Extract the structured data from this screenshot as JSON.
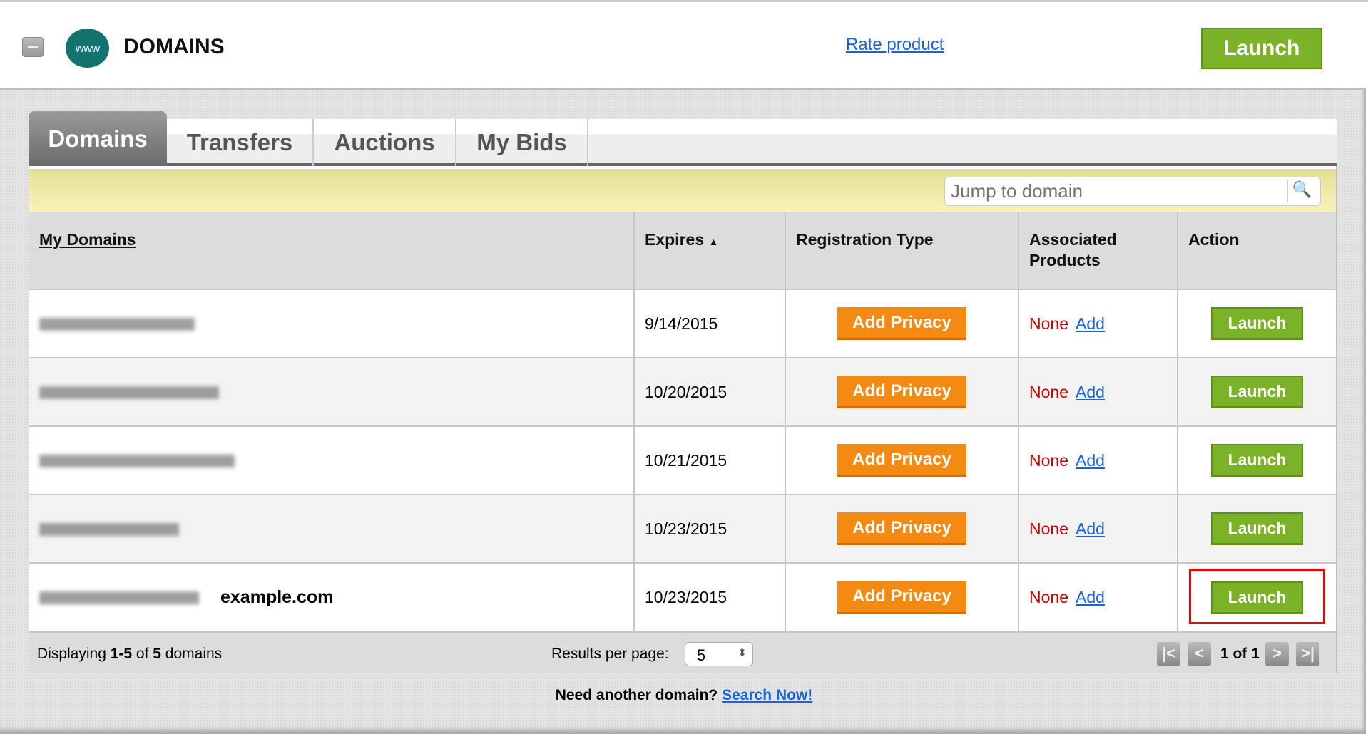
{
  "header": {
    "title": "DOMAINS",
    "logo_text": "www",
    "rate_link": "Rate product",
    "launch_label": "Launch"
  },
  "tabs": [
    {
      "label": "Domains",
      "active": true
    },
    {
      "label": "Transfers"
    },
    {
      "label": "Auctions"
    },
    {
      "label": "My Bids"
    }
  ],
  "search": {
    "placeholder": "Jump to domain",
    "icon": "magnifier-icon"
  },
  "table": {
    "columns": [
      "My Domains",
      "Expires",
      "Registration Type",
      "Associated Products",
      "Action"
    ],
    "sort_indicator": "▲",
    "rows": [
      {
        "domain_visible": "",
        "expires": "9/14/2015",
        "reg_button": "Add Privacy",
        "products": "None",
        "add": "Add",
        "action": "Launch"
      },
      {
        "domain_visible": "",
        "expires": "10/20/2015",
        "reg_button": "Add Privacy",
        "products": "None",
        "add": "Add",
        "action": "Launch"
      },
      {
        "domain_visible": "",
        "expires": "10/21/2015",
        "reg_button": "Add Privacy",
        "products": "None",
        "add": "Add",
        "action": "Launch"
      },
      {
        "domain_visible": "",
        "expires": "10/23/2015",
        "reg_button": "Add Privacy",
        "products": "None",
        "add": "Add",
        "action": "Launch"
      },
      {
        "domain_visible": "example.com",
        "expires": "10/23/2015",
        "reg_button": "Add Privacy",
        "products": "None",
        "add": "Add",
        "action": "Launch",
        "highlighted": true
      }
    ]
  },
  "footer": {
    "displaying_prefix": "Displaying ",
    "range": "1-5",
    "of": " of ",
    "total": "5",
    "suffix": " domains",
    "results_label": "Results per page:",
    "results_value": "5",
    "page_text": "1 of 1",
    "first": "|<",
    "prev": "<",
    "next": ">",
    "last": ">|"
  },
  "bottom": {
    "prompt": "Need another domain?",
    "link": "Search Now!"
  },
  "colors": {
    "launch_green": "#7cb227",
    "privacy_orange": "#f58a12",
    "none_red": "#cc0000",
    "link_blue": "#1a63d8",
    "highlight_red": "#ee0000",
    "search_bar_yellow": "#f0eba8"
  }
}
